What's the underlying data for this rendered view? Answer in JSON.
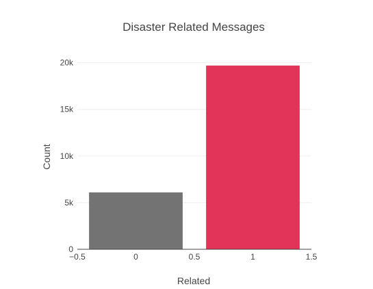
{
  "chart_data": {
    "type": "bar",
    "title": "Disaster Related Messages",
    "xlabel": "Related",
    "ylabel": "Count",
    "categories": [
      0,
      1
    ],
    "values": [
      6100,
      19700
    ],
    "colors": [
      "#6b6b6b",
      "#e0294f"
    ],
    "xlim": [
      -0.5,
      1.5
    ],
    "ylim": [
      0,
      21000
    ],
    "xticks": [
      -0.5,
      0,
      0.5,
      1,
      1.5
    ],
    "xtick_labels": [
      "−0.5",
      "0",
      "0.5",
      "1",
      "1.5"
    ],
    "yticks": [
      0,
      5000,
      10000,
      15000,
      20000
    ],
    "ytick_labels": [
      "0",
      "5k",
      "10k",
      "15k",
      "20k"
    ],
    "grid": true,
    "legend": "none"
  }
}
